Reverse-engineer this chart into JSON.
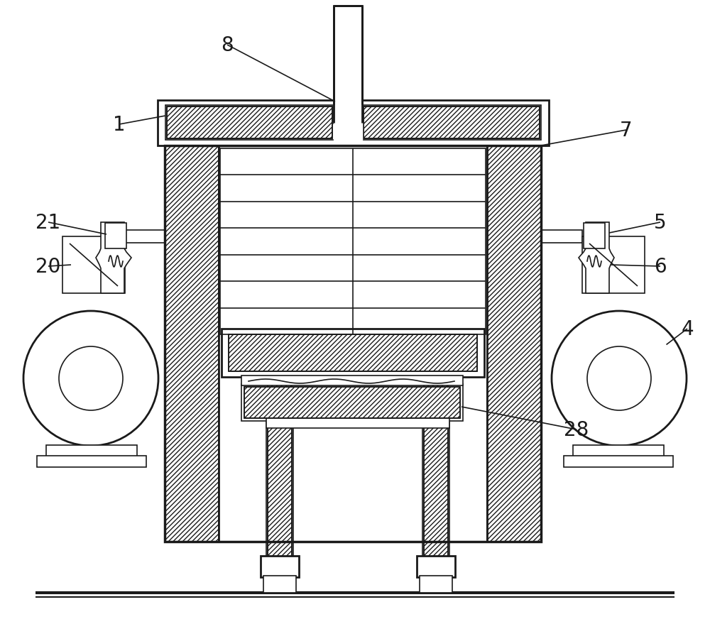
{
  "bg_color": "#ffffff",
  "line_color": "#1a1a1a",
  "figsize": [
    10.0,
    9.04
  ],
  "dpi": 100,
  "label_fontsize": 20
}
